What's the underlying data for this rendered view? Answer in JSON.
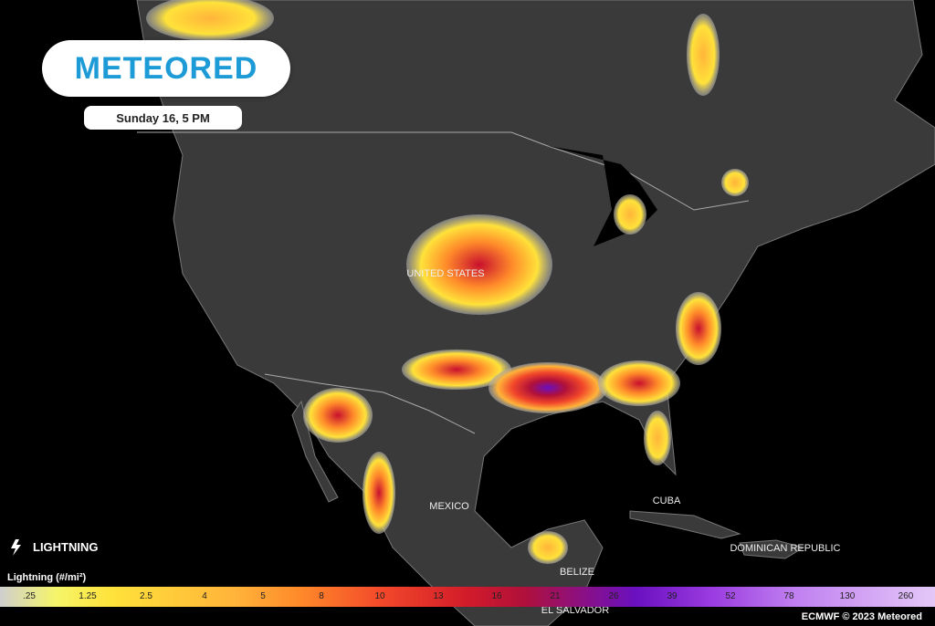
{
  "brand": "METEORED",
  "forecast_time": "Sunday 16, 5 PM",
  "layer": "LIGHTNING",
  "legend": {
    "title": "Lightning (#/mi²)",
    "ticks": [
      ".25",
      "1.25",
      "2.5",
      "4",
      "5",
      "8",
      "10",
      "13",
      "16",
      "21",
      "26",
      "39",
      "52",
      "78",
      "130",
      "260"
    ]
  },
  "map_labels": [
    "UNITED STATES",
    "MEXICO",
    "CUBA",
    "DOMINICAN REPUBLIC",
    "BELIZE",
    "EL SALVADOR"
  ],
  "credit": "ECMWF © 2023 Meteored"
}
